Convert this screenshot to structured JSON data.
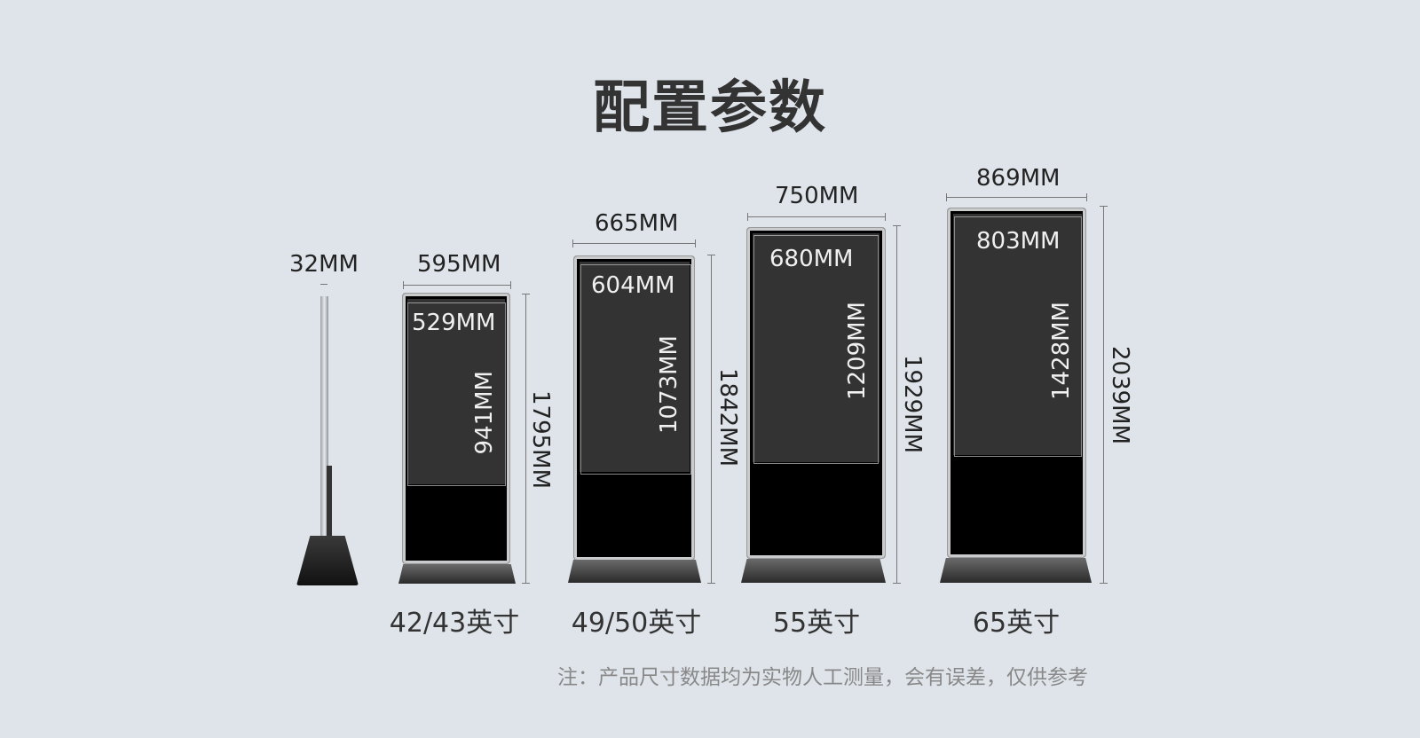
{
  "title": "配置参数",
  "side_view": {
    "thickness_label": "32MM"
  },
  "models": [
    {
      "size_label": "42/43英寸",
      "outer_width": "595MM",
      "screen_width": "529MM",
      "screen_height": "941MM",
      "total_height": "1795MM"
    },
    {
      "size_label": "49/50英寸",
      "outer_width": "665MM",
      "screen_width": "604MM",
      "screen_height": "1073MM",
      "total_height": "1842MM"
    },
    {
      "size_label": "55英寸",
      "outer_width": "750MM",
      "screen_width": "680MM",
      "screen_height": "1209MM",
      "total_height": "1929MM"
    },
    {
      "size_label": "65英寸",
      "outer_width": "869MM",
      "screen_width": "803MM",
      "screen_height": "1428MM",
      "total_height": "2039MM"
    }
  ],
  "note": "注：产品尺寸数据均为实物人工测量，会有误差，仅供参考"
}
